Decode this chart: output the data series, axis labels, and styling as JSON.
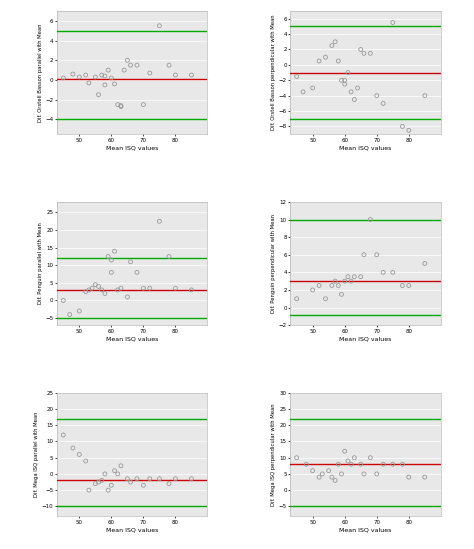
{
  "fig_bg_color": "#ffffff",
  "plot_bg_color": "#e8e8e8",
  "subplot_titles": [
    [
      "Dif. Orstell Basson parallel with Mean",
      "Dif. Orstell Basson perpendicular with Mean"
    ],
    [
      "Dif. Penguin parallel with Mean",
      "Dif. Penguin perpendicular with Mean"
    ],
    [
      "Dif. Mega ISQ parallel with Mean",
      "Dif. Mega ISQ perpendicular with Mean"
    ]
  ],
  "xlabel": "Mean ISQ values",
  "xlim": [
    43,
    90
  ],
  "xticks": [
    50,
    60,
    70,
    80
  ],
  "plots": [
    {
      "ylim": [
        -5.5,
        7.0
      ],
      "red_line": 0.1,
      "green_upper": 5.0,
      "green_lower": -4.0,
      "scatter_x": [
        45,
        48,
        50,
        52,
        53,
        55,
        56,
        57,
        58,
        58,
        59,
        60,
        61,
        62,
        63,
        63,
        64,
        65,
        66,
        68,
        70,
        72,
        75,
        78,
        80,
        85
      ],
      "scatter_y": [
        0.2,
        0.6,
        0.3,
        0.5,
        -0.3,
        0.3,
        -1.5,
        0.5,
        -0.5,
        0.4,
        1.0,
        0.2,
        -0.4,
        -2.5,
        -2.6,
        -2.7,
        1.0,
        2.0,
        1.5,
        1.5,
        -2.5,
        0.7,
        5.5,
        1.5,
        0.5,
        0.5
      ]
    },
    {
      "ylim": [
        -9.0,
        7.0
      ],
      "red_line": -1.0,
      "green_upper": 5.0,
      "green_lower": -7.0,
      "scatter_x": [
        45,
        47,
        50,
        52,
        54,
        56,
        57,
        58,
        59,
        60,
        60,
        61,
        62,
        63,
        64,
        65,
        66,
        68,
        70,
        72,
        75,
        78,
        80,
        85
      ],
      "scatter_y": [
        -1.5,
        -3.5,
        -3.0,
        0.5,
        1.0,
        2.5,
        3.0,
        0.5,
        -2.0,
        -2.5,
        -2.0,
        -1.0,
        -3.5,
        -4.5,
        -3.0,
        2.0,
        1.5,
        1.5,
        -4.0,
        -5.0,
        5.5,
        -8.0,
        -8.5,
        -4.0
      ]
    },
    {
      "ylim": [
        -7.0,
        28.0
      ],
      "red_line": 3.0,
      "green_upper": 12.0,
      "green_lower": -5.0,
      "scatter_x": [
        45,
        47,
        50,
        52,
        53,
        54,
        55,
        56,
        57,
        58,
        59,
        60,
        60,
        61,
        62,
        63,
        65,
        66,
        68,
        70,
        72,
        75,
        78,
        80,
        85
      ],
      "scatter_y": [
        0.0,
        -4.0,
        -3.0,
        2.5,
        3.0,
        3.5,
        4.5,
        4.0,
        3.0,
        2.0,
        12.5,
        8.0,
        11.5,
        14.0,
        3.0,
        3.5,
        1.0,
        11.0,
        8.0,
        3.5,
        3.5,
        22.5,
        12.5,
        3.5,
        3.0
      ]
    },
    {
      "ylim": [
        -2.0,
        12.0
      ],
      "red_line": 3.0,
      "green_upper": 10.0,
      "green_lower": -0.8,
      "scatter_x": [
        45,
        50,
        52,
        54,
        56,
        57,
        58,
        59,
        60,
        61,
        62,
        63,
        65,
        66,
        68,
        70,
        72,
        75,
        78,
        80,
        85
      ],
      "scatter_y": [
        1.0,
        2.0,
        2.5,
        1.0,
        2.5,
        3.0,
        2.5,
        1.5,
        3.0,
        3.5,
        3.0,
        3.5,
        3.5,
        6.0,
        10.0,
        6.0,
        4.0,
        4.0,
        2.5,
        2.5,
        5.0
      ]
    },
    {
      "ylim": [
        -13.0,
        25.0
      ],
      "red_line": -2.0,
      "green_upper": 17.0,
      "green_lower": -10.0,
      "scatter_x": [
        45,
        48,
        50,
        52,
        53,
        55,
        56,
        57,
        58,
        59,
        60,
        61,
        62,
        63,
        65,
        66,
        68,
        70,
        72,
        75,
        78,
        80,
        85
      ],
      "scatter_y": [
        12.0,
        8.0,
        6.0,
        4.0,
        -5.0,
        -3.0,
        -2.5,
        -2.0,
        0.0,
        -5.0,
        -3.5,
        1.0,
        0.0,
        2.5,
        -1.5,
        -2.5,
        -1.5,
        -3.5,
        -1.5,
        -1.5,
        -3.0,
        -1.5,
        -1.5
      ]
    },
    {
      "ylim": [
        -8.0,
        30.0
      ],
      "red_line": 8.0,
      "green_upper": 22.0,
      "green_lower": -5.0,
      "scatter_x": [
        45,
        48,
        50,
        52,
        53,
        55,
        56,
        57,
        58,
        59,
        60,
        61,
        62,
        63,
        65,
        66,
        68,
        70,
        72,
        75,
        78,
        80,
        85
      ],
      "scatter_y": [
        10.0,
        8.0,
        6.0,
        4.0,
        5.0,
        6.0,
        4.0,
        3.0,
        8.0,
        5.0,
        12.0,
        9.0,
        8.0,
        10.0,
        8.0,
        5.0,
        10.0,
        5.0,
        8.0,
        8.0,
        8.0,
        4.0,
        4.0
      ]
    }
  ]
}
